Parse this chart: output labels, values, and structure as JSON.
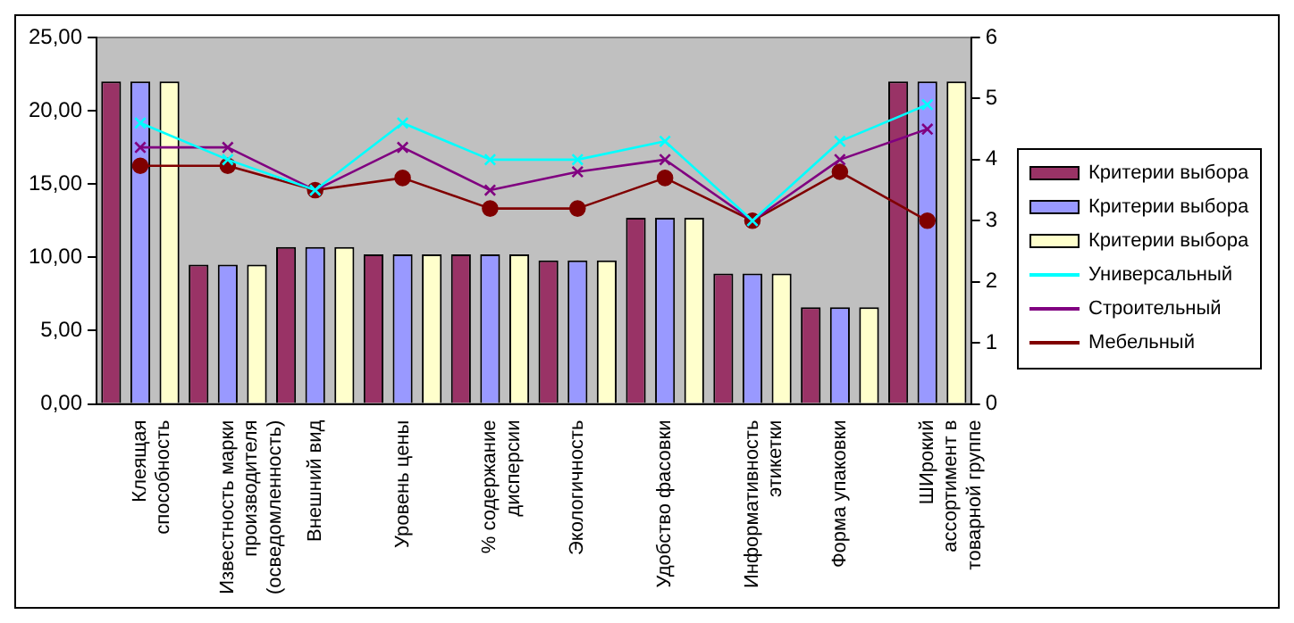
{
  "chart_data": {
    "type": "bar",
    "categories": [
      "Клеящая способность",
      "Известность марки производителя (осведомленность)",
      "Внешний вид",
      "Уровень цены",
      "% содержание дисперсии",
      "Экологичность",
      "Удобство фасовки",
      "Информативность этикетки",
      "Форма упаковки",
      "ШИрокий ассортимент в товарной группе"
    ],
    "series": [
      {
        "name": "Критерии выбора",
        "color": "#993366",
        "values": [
          22.0,
          9.5,
          10.7,
          10.2,
          10.2,
          9.8,
          12.7,
          8.9,
          6.6,
          22.0
        ]
      },
      {
        "name": "Критерии выбора",
        "color": "#9999ff",
        "values": [
          22.0,
          9.5,
          10.7,
          10.2,
          10.2,
          9.8,
          12.7,
          8.9,
          6.6,
          22.0
        ]
      },
      {
        "name": "Критерии выбора",
        "color": "#ffffcc",
        "values": [
          22.0,
          9.5,
          10.7,
          10.2,
          10.2,
          9.8,
          12.7,
          8.9,
          6.6,
          22.0
        ]
      },
      {
        "name": "Универсальный",
        "type": "line",
        "axis": "y2",
        "marker": "cross",
        "color": "#00ffff",
        "values": [
          4.6,
          4.0,
          3.5,
          4.6,
          4.0,
          4.0,
          4.3,
          3.0,
          4.3,
          4.9
        ]
      },
      {
        "name": "Строительный",
        "type": "line",
        "axis": "y2",
        "marker": "cross",
        "color": "#800080",
        "values": [
          4.2,
          4.2,
          3.5,
          4.2,
          3.5,
          3.8,
          4.0,
          3.0,
          4.0,
          4.5
        ]
      },
      {
        "name": "Мебельный",
        "type": "line",
        "axis": "y2",
        "marker": "circle",
        "color": "#800000",
        "values": [
          3.9,
          3.9,
          3.5,
          3.7,
          3.2,
          3.2,
          3.7,
          3.0,
          3.8,
          3.0
        ]
      }
    ],
    "ylim": [
      0,
      25
    ],
    "yticks": [
      {
        "value": 0,
        "label": "0,00"
      },
      {
        "value": 5,
        "label": "5,00"
      },
      {
        "value": 10,
        "label": "10,00"
      },
      {
        "value": 15,
        "label": "15,00"
      },
      {
        "value": 20,
        "label": "20,00"
      },
      {
        "value": 25,
        "label": "25,00"
      }
    ],
    "y2lim": [
      0,
      6
    ],
    "y2ticks": [
      0,
      1,
      2,
      3,
      4,
      5,
      6
    ],
    "grid": false,
    "legend": "right"
  }
}
